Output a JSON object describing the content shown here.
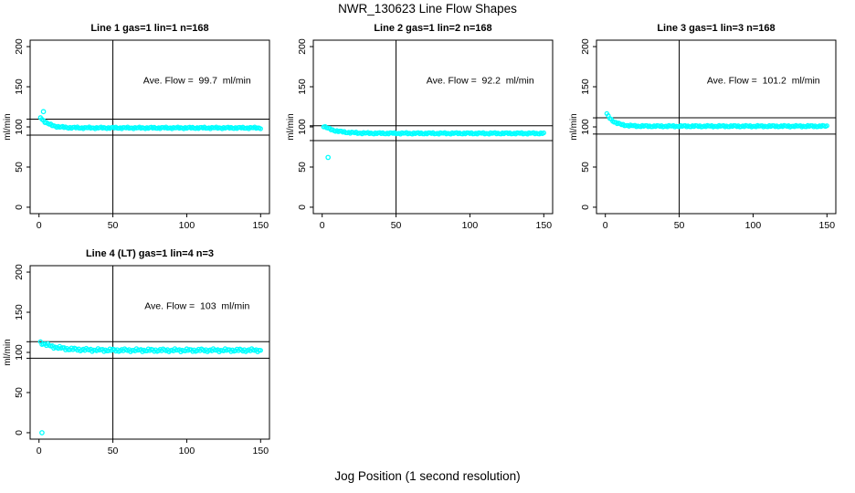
{
  "page": {
    "title": "NWR_130623  Line Flow Shapes",
    "xlabel": "Jog Position (1 second resolution)"
  },
  "colors": {
    "points": "#00ffff",
    "axis": "#000000",
    "background": "#ffffff"
  },
  "chart_data": [
    {
      "type": "scatter",
      "title": "Line 1 gas=1 lin=1 n=168",
      "annotation": "Ave. Flow =  99.7  ml/min",
      "ylabel": "ml/min",
      "xlim": [
        0,
        150
      ],
      "ylim": [
        0,
        200
      ],
      "xticks": [
        0,
        50,
        100,
        150
      ],
      "yticks": [
        0,
        50,
        100,
        150,
        200
      ],
      "avg_flow": 99.7,
      "ref_lines_y": [
        109.7,
        89.7
      ],
      "ref_line_x": 50,
      "series": {
        "x_start": 1,
        "x_end": 150,
        "start_value": 112,
        "settle_value": 98.8,
        "decay_tau": 5.5,
        "noise": 0.9
      },
      "outliers": [
        [
          3,
          119
        ]
      ]
    },
    {
      "type": "scatter",
      "title": "Line 2 gas=1 lin=2 n=168",
      "annotation": "Ave. Flow =  92.2  ml/min",
      "ylabel": "ml/min",
      "xlim": [
        0,
        150
      ],
      "ylim": [
        0,
        200
      ],
      "xticks": [
        0,
        50,
        100,
        150
      ],
      "yticks": [
        0,
        50,
        100,
        150,
        200
      ],
      "avg_flow": 92.2,
      "ref_lines_y": [
        101.4,
        83.0
      ],
      "ref_line_x": 50,
      "series": {
        "x_start": 1,
        "x_end": 150,
        "start_value": 101,
        "settle_value": 92.0,
        "decay_tau": 8,
        "noise": 0.9
      },
      "outliers": [
        [
          4,
          62
        ]
      ]
    },
    {
      "type": "scatter",
      "title": "Line 3 gas=1 lin=3 n=168",
      "annotation": "Ave. Flow =  101.2  ml/min",
      "ylabel": "ml/min",
      "xlim": [
        0,
        150
      ],
      "ylim": [
        0,
        200
      ],
      "xticks": [
        0,
        50,
        100,
        150
      ],
      "yticks": [
        0,
        50,
        100,
        150,
        200
      ],
      "avg_flow": 101.2,
      "ref_lines_y": [
        111.3,
        91.1
      ],
      "ref_line_x": 50,
      "series": {
        "x_start": 1,
        "x_end": 150,
        "start_value": 116,
        "settle_value": 100.9,
        "decay_tau": 5,
        "noise": 0.9
      },
      "outliers": []
    },
    {
      "type": "scatter",
      "title": "Line 4 (LT) gas=1 lin=4 n=3",
      "annotation": "Ave. Flow =  103  ml/min",
      "ylabel": "ml/min",
      "xlim": [
        0,
        150
      ],
      "ylim": [
        0,
        200
      ],
      "xticks": [
        0,
        50,
        100,
        150
      ],
      "yticks": [
        0,
        50,
        100,
        150,
        200
      ],
      "avg_flow": 103,
      "ref_lines_y": [
        113.3,
        92.7
      ],
      "ref_line_x": 50,
      "series": {
        "x_start": 1,
        "x_end": 150,
        "start_value": 112.5,
        "settle_value": 102.7,
        "decay_tau": 11,
        "noise": 1.6
      },
      "outliers": [
        [
          2,
          0
        ]
      ]
    }
  ]
}
